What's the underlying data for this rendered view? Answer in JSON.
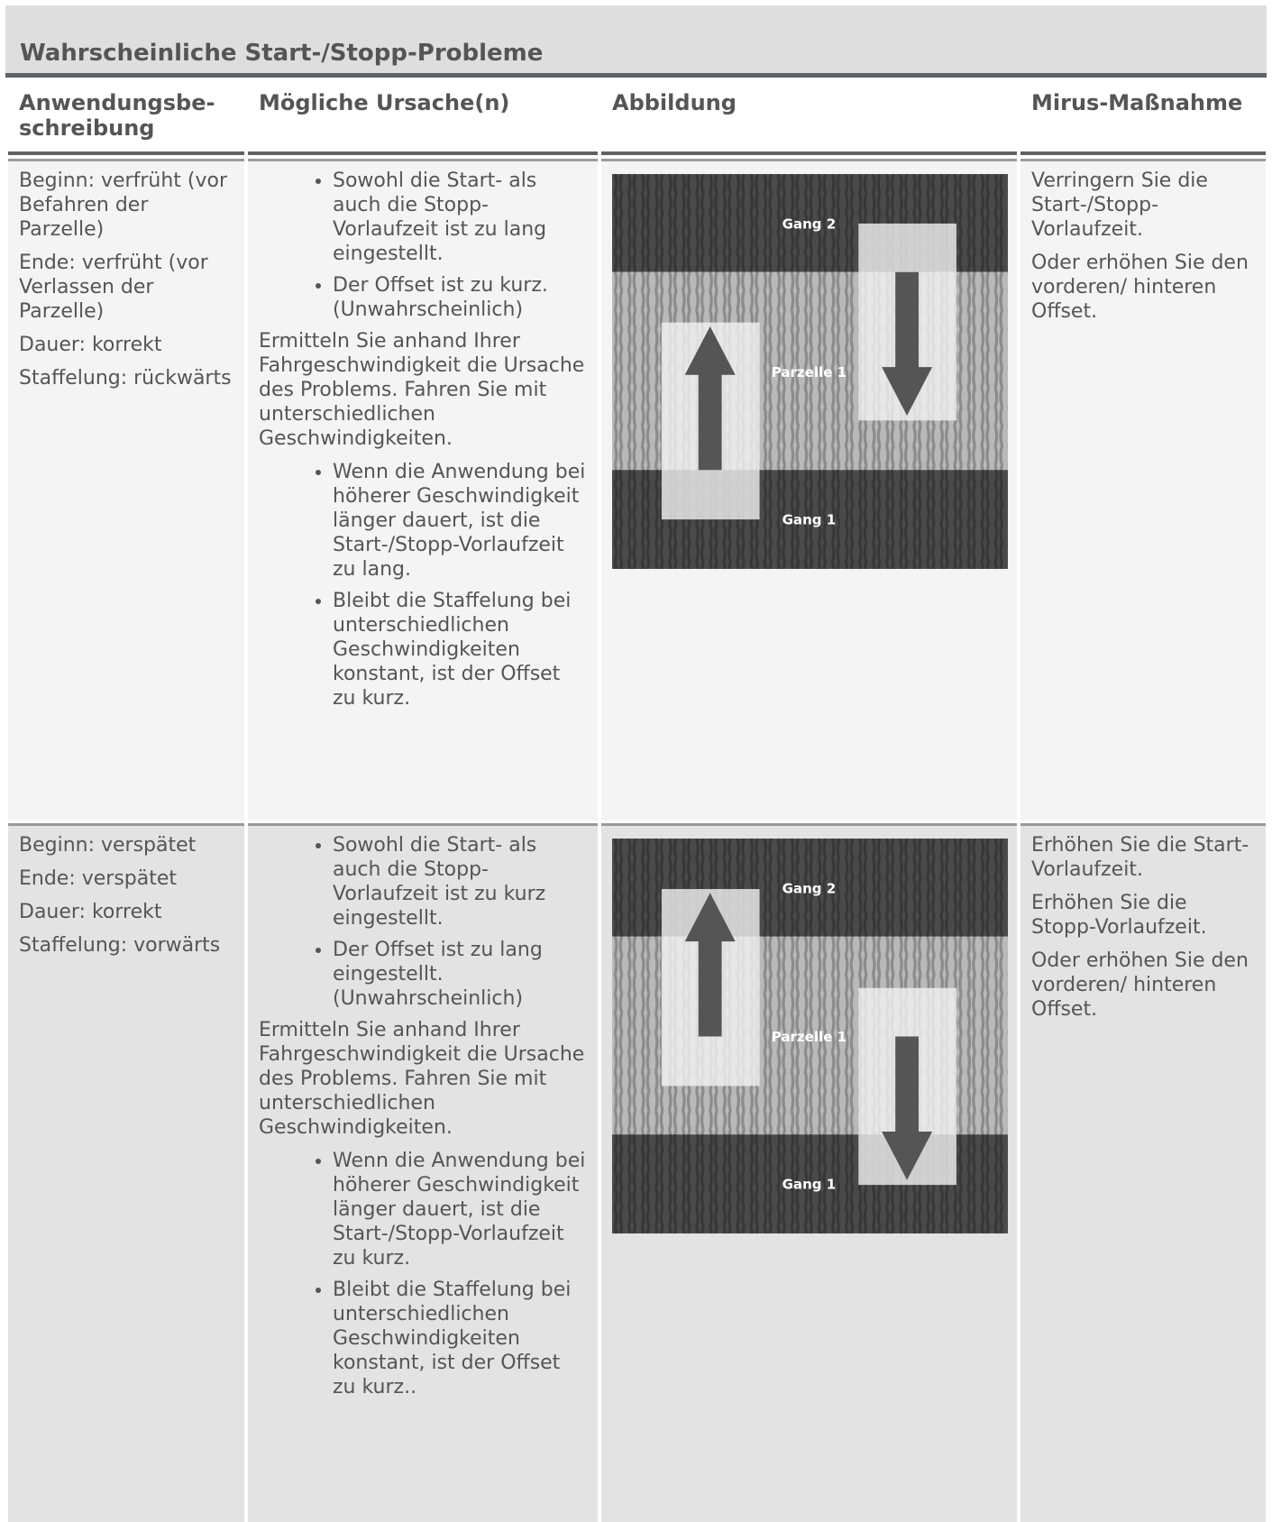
{
  "header": {
    "title": "Wahrscheinliche Start-/Stopp-Probleme"
  },
  "table": {
    "columns": [
      "Anwendungsbe-schreibung",
      "Mögliche Ursache(n)",
      "Abbildung",
      "Mirus-Maßnahme"
    ],
    "rows": [
      {
        "description": [
          "Beginn: verfrüht (vor Befahren der Parzelle)",
          "Ende: verfrüht (vor Verlassen der Parzelle)",
          "Dauer: korrekt",
          "Staffelung: rückwärts"
        ],
        "causes": {
          "bullets": [
            "Sowohl die Start- als auch die Stopp-Vorlaufzeit ist zu lang eingestellt.",
            "Der Offset ist zu kurz. (Unwahrscheinlich)"
          ],
          "paragraph": "Ermitteln Sie anhand Ihrer Fahrgeschwindigkeit die Ursache des Problems. Fahren Sie mit unterschiedlichen Geschwindigkeiten.",
          "sub_bullets": [
            "Wenn die Anwendung bei höherer Geschwindigkeit länger dauert, ist die Start-/Stopp-Vorlaufzeit zu lang.",
            "Bleibt die Staffelung bei unterschiedlichen Geschwindigkeiten konstant, ist der Offset zu kurz."
          ]
        },
        "illustration": {
          "top": "Gang 2",
          "middle": "Parzelle 1",
          "bottom": "Gang 1"
        },
        "measures": [
          "Verringern Sie die Start-/Stopp-Vorlaufzeit.",
          "Oder erhöhen Sie den vorderen/ hinteren Offset."
        ]
      },
      {
        "description": [
          "Beginn: verspätet",
          "Ende: verspätet",
          "Dauer: korrekt",
          "Staffelung: vorwärts"
        ],
        "causes": {
          "bullets": [
            "Sowohl die Start- als auch die Stopp-Vorlaufzeit ist zu kurz eingestellt.",
            "Der Offset ist zu lang eingestellt. (Unwahrscheinlich)"
          ],
          "paragraph": "Ermitteln Sie anhand Ihrer Fahrgeschwindigkeit die Ursache des Problems. Fahren Sie mit unterschiedlichen Geschwindigkeiten.",
          "sub_bullets": [
            "Wenn die Anwendung bei höherer Geschwindigkeit länger dauert, ist die Start-/Stopp-Vorlaufzeit zu kurz.",
            "Bleibt die Staffelung bei unterschiedlichen Geschwindigkeiten konstant, ist der Offset zu kurz.."
          ]
        },
        "illustration": {
          "top": "Gang 2",
          "middle": "Parzelle 1",
          "bottom": "Gang 1"
        },
        "measures": [
          "Erhöhen Sie die Start-Vorlaufzeit.",
          "Erhöhen Sie die Stopp-Vorlaufzeit.",
          "Oder erhöhen Sie den vorderen/ hinteren Offset."
        ]
      }
    ]
  }
}
